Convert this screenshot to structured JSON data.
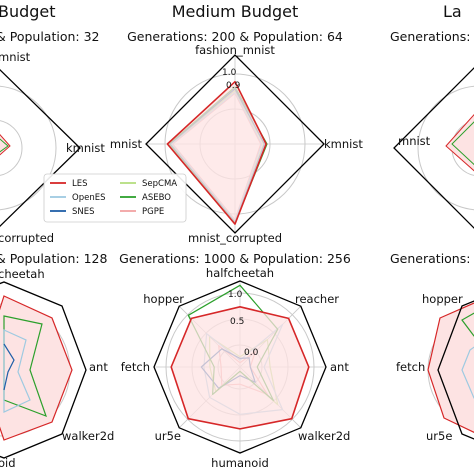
{
  "figure": {
    "headers": [
      "Budget",
      "Medium Budget",
      "La"
    ],
    "colors": {
      "LES": "#d62728",
      "OpenES": "#9ecae1",
      "SNES": "#1f5fa8",
      "SepCMA": "#b5de7f",
      "ASEBO": "#2ca02c",
      "PGPE": "#f2a3a3",
      "fill": "#fde3e3",
      "frame": "#000000",
      "grid": "#c8c8c8"
    },
    "legend": {
      "placement": "inside top-center panel, lower right of center",
      "entries": [
        "LES",
        "OpenES",
        "SNES",
        "SepCMA",
        "ASEBO",
        "PGPE"
      ]
    }
  },
  "chart_data": [
    {
      "id": "top-left",
      "type": "radar",
      "title": "& Population: 32",
      "axes": [
        "mnist",
        "kmnist",
        "corrupted"
      ],
      "notes": "partially visible"
    },
    {
      "id": "top-center",
      "type": "radar",
      "title": "Generations: 200  & Population: 64",
      "axes": [
        "fashion_mnist",
        "kmnist",
        "mnist_corrupted",
        "mnist"
      ],
      "radial_ticks": [
        "0.9",
        "1.0"
      ],
      "series": [
        {
          "name": "LES",
          "values": [
            0.7,
            0.35,
            0.9,
            0.76
          ]
        },
        {
          "name": "OpenES",
          "values": [
            0.58,
            0.3,
            0.86,
            0.71
          ]
        },
        {
          "name": "SNES",
          "values": [
            0.62,
            0.33,
            0.88,
            0.73
          ]
        },
        {
          "name": "SepCMA",
          "values": [
            0.6,
            0.32,
            0.86,
            0.72
          ]
        },
        {
          "name": "ASEBO",
          "values": [
            0.64,
            0.36,
            0.89,
            0.74
          ]
        },
        {
          "name": "PGPE",
          "values": [
            0.57,
            0.29,
            0.85,
            0.7
          ]
        }
      ]
    },
    {
      "id": "top-right",
      "type": "radar",
      "title": "Generations:",
      "axes": [
        "mnist"
      ],
      "notes": "partially visible"
    },
    {
      "id": "bottom-left",
      "type": "radar",
      "title": "& Population: 128",
      "axes": [
        "cheetah",
        "ant",
        "walker2d",
        "oid"
      ],
      "notes": "partially visible"
    },
    {
      "id": "bottom-center",
      "type": "radar",
      "title": "Generations: 1000  & Population: 256",
      "axes": [
        "halfcheetah",
        "reacher",
        "ant",
        "walker2d",
        "humanoid",
        "ur5e",
        "fetch",
        "hopper"
      ],
      "radial_ticks": [
        "0.0",
        "0.5",
        "1.0"
      ],
      "series": [
        {
          "name": "LES",
          "values": [
            0.7,
            0.8,
            0.8,
            0.85,
            0.72,
            0.85,
            0.8,
            0.8
          ]
        },
        {
          "name": "OpenES",
          "values": [
            0.08,
            0.7,
            0.28,
            0.7,
            0.55,
            0.5,
            0.42,
            0.55
          ]
        },
        {
          "name": "SNES",
          "values": [
            0.1,
            0.15,
            0.12,
            0.25,
            0.1,
            0.35,
            0.45,
            0.3
          ]
        },
        {
          "name": "SepCMA",
          "values": [
            0.12,
            0.45,
            0.35,
            0.62,
            0.05,
            0.4,
            0.35,
            0.5
          ]
        },
        {
          "name": "ASEBO",
          "values": [
            0.95,
            0.62,
            0.2,
            0.55,
            0.05,
            0.45,
            0.3,
            0.85
          ]
        },
        {
          "name": "PGPE",
          "values": [
            0.05,
            0.25,
            0.12,
            0.45,
            0.2,
            0.3,
            0.22,
            0.35
          ]
        }
      ]
    },
    {
      "id": "bottom-right",
      "type": "radar",
      "title": "Generations:",
      "axes": [
        "hopper",
        "fetch",
        "ur5e"
      ],
      "notes": "partially visible"
    }
  ]
}
